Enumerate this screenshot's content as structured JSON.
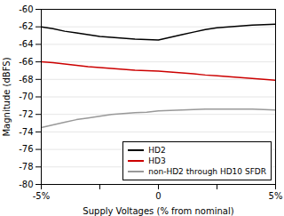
{
  "chart_data": {
    "type": "line",
    "title": "",
    "xlabel": "Supply Voltages (% from nominal)",
    "ylabel": "Magnitude (dBFS)",
    "x": [
      -5,
      -4.5,
      -4,
      -3.5,
      -3,
      -2.5,
      -2,
      -1.5,
      -1,
      -0.5,
      0,
      0.5,
      1,
      1.5,
      2,
      2.5,
      3,
      3.5,
      4,
      4.5,
      5
    ],
    "series": [
      {
        "name": "HD2",
        "color": "#000000",
        "values": [
          -62.0,
          -62.2,
          -62.5,
          -62.7,
          -62.9,
          -63.1,
          -63.2,
          -63.3,
          -63.4,
          -63.45,
          -63.5,
          -63.2,
          -62.9,
          -62.6,
          -62.3,
          -62.1,
          -62.0,
          -61.9,
          -61.8,
          -61.75,
          -61.7
        ]
      },
      {
        "name": "HD3",
        "color": "#cc0000",
        "values": [
          -66.0,
          -66.1,
          -66.25,
          -66.4,
          -66.55,
          -66.65,
          -66.75,
          -66.85,
          -66.95,
          -67.0,
          -67.05,
          -67.15,
          -67.25,
          -67.35,
          -67.5,
          -67.6,
          -67.7,
          -67.8,
          -67.9,
          -68.0,
          -68.1
        ]
      },
      {
        "name": "non-HD2 through HD10 SFDR",
        "color": "#999999",
        "values": [
          -73.5,
          -73.2,
          -72.9,
          -72.6,
          -72.4,
          -72.2,
          -72.0,
          -71.9,
          -71.8,
          -71.75,
          -71.6,
          -71.55,
          -71.5,
          -71.45,
          -71.4,
          -71.4,
          -71.4,
          -71.4,
          -71.4,
          -71.45,
          -71.5
        ]
      }
    ],
    "xlim": [
      -5,
      5
    ],
    "xticks": [
      {
        "value": -5,
        "label": "-5%"
      },
      {
        "value": -2.5,
        "label": null
      },
      0,
      {
        "value": 2.5,
        "label": null
      },
      {
        "value": 5,
        "label": "5%"
      }
    ],
    "ylim": [
      -80,
      -60
    ],
    "yticks": [
      -80,
      -78,
      -76,
      -74,
      -72,
      -70,
      -68,
      -66,
      -64,
      -62,
      -60
    ],
    "grid": "y",
    "legend": "lower right"
  }
}
